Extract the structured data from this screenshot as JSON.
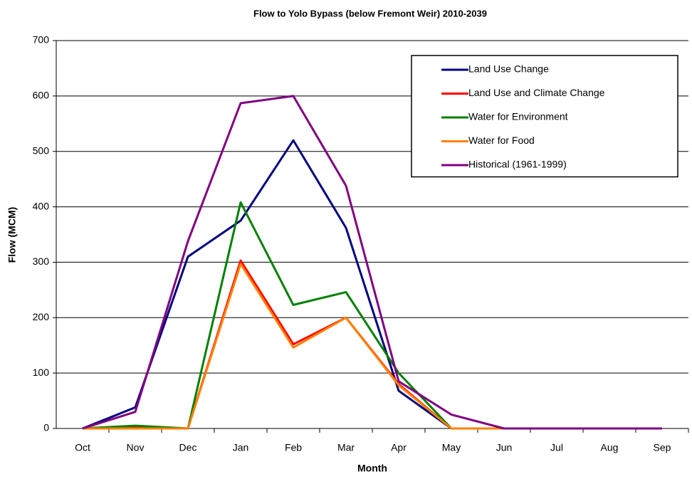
{
  "chart_data": {
    "type": "line",
    "title": "Flow to Yolo Bypass (below Fremont Weir) 2010-2039",
    "x_label": "Month",
    "y_label": "Flow (MCM)",
    "categories": [
      "Oct",
      "Nov",
      "Dec",
      "Jan",
      "Feb",
      "Mar",
      "Apr",
      "May",
      "Jun",
      "Jul",
      "Aug",
      "Sep"
    ],
    "ylim": [
      0,
      700
    ],
    "yticks": [
      0,
      100,
      200,
      300,
      400,
      500,
      600,
      700
    ],
    "grid": true,
    "legend": "upper right",
    "series": [
      {
        "name": "Land Use Change",
        "color": "#000080",
        "values": [
          0,
          38,
          310,
          375,
          520,
          362,
          68,
          0,
          0,
          0,
          0,
          0
        ]
      },
      {
        "name": "Land Use and Climate Change",
        "color": "#ff0000",
        "values": [
          0,
          2,
          0,
          303,
          152,
          200,
          80,
          0,
          0,
          0,
          0,
          0
        ]
      },
      {
        "name": "Water for Environment",
        "color": "#008000",
        "values": [
          0,
          5,
          0,
          408,
          223,
          246,
          100,
          0,
          0,
          0,
          0,
          0
        ]
      },
      {
        "name": "Water for Food",
        "color": "#ff8000",
        "values": [
          0,
          0,
          0,
          297,
          146,
          200,
          78,
          0,
          0,
          0,
          0,
          0
        ]
      },
      {
        "name": "Historical (1961-1999)",
        "color": "#800080",
        "values": [
          0,
          30,
          338,
          587,
          600,
          438,
          85,
          25,
          0,
          0,
          0,
          0
        ]
      }
    ]
  }
}
